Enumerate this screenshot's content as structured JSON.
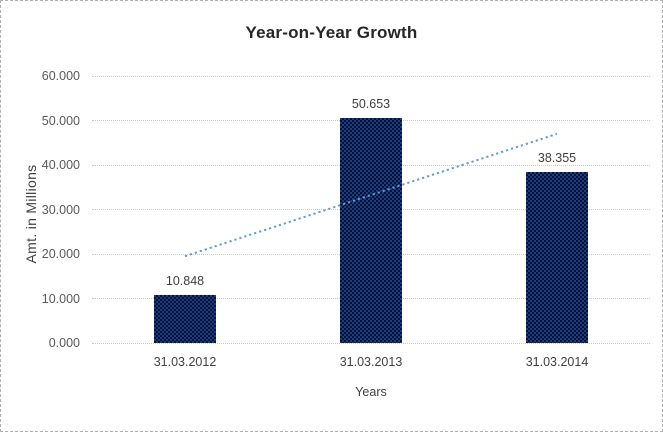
{
  "chart_data": {
    "type": "bar",
    "title": "Year-on-Year Growth",
    "categories": [
      "31.03.2012",
      "31.03.2013",
      "31.03.2014"
    ],
    "values": [
      10.848,
      50.653,
      38.355
    ],
    "data_labels": [
      "10.848",
      "50.653",
      "38.355"
    ],
    "xlabel": "Years",
    "ylabel": "Amt. in Millions",
    "ylim": [
      0,
      60
    ],
    "ytick_interval": 10,
    "ytick_labels": [
      "0.000",
      "10.000",
      "20.000",
      "30.000",
      "40.000",
      "50.000",
      "60.000"
    ],
    "grid": true,
    "legend": "none",
    "trendline": {
      "type": "linear",
      "style": "dotted",
      "start_value": 19.5,
      "end_value": 47.0,
      "color": "#5b9bd5"
    },
    "colors": {
      "bar_fill": "#1d3b80",
      "bar_pattern": "#041233",
      "gridline": "#c9c9c9",
      "title_text": "#262626",
      "tick_text": "#595959",
      "label_text": "#404040",
      "frame_border": "#b0b0b0",
      "background": "#ffffff"
    }
  }
}
